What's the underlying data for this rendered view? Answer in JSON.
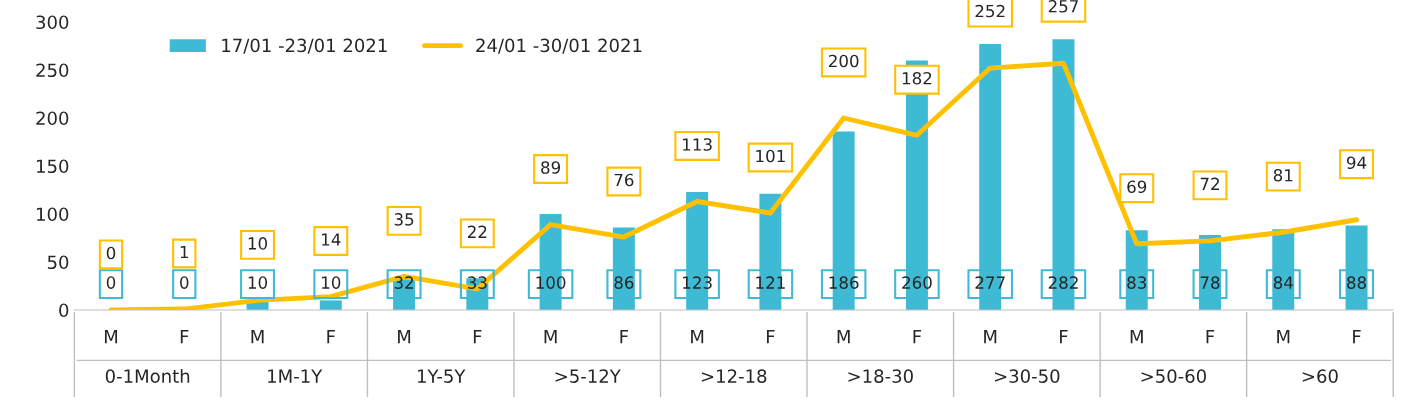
{
  "chart_data": {
    "type": "bar",
    "categories": [
      "M",
      "F",
      "M",
      "F",
      "M",
      "F",
      "M",
      "F",
      "M",
      "F",
      "M",
      "F",
      "M",
      "F",
      "M",
      "F",
      "M",
      "F"
    ],
    "annotations": [
      "0-1Month",
      "1M-1Y",
      "1Y-5Y",
      ">5-12Y",
      ">12-18",
      ">18-30",
      ">30-50",
      ">50-60",
      ">60"
    ],
    "series": [
      {
        "name": "17/01 -23/01 2021",
        "color": "#3fbad4",
        "values": [
          0,
          0,
          10,
          10,
          32,
          33,
          100,
          86,
          123,
          121,
          186,
          260,
          277,
          282,
          83,
          78,
          84,
          88
        ]
      },
      {
        "name": "24/01 -30/01 2021",
        "type": "line",
        "color": "#ffc000",
        "values": [
          0,
          1,
          10,
          14,
          35,
          22,
          89,
          76,
          113,
          101,
          200,
          182,
          252,
          257,
          69,
          72,
          81,
          94
        ]
      }
    ],
    "ylim": [
      0,
      300
    ],
    "yticks": [
      0,
      50,
      100,
      150,
      200,
      250,
      300
    ],
    "data_labels": true,
    "legend": "top left",
    "grid": false,
    "marker": "none",
    "line_style": "solid"
  }
}
